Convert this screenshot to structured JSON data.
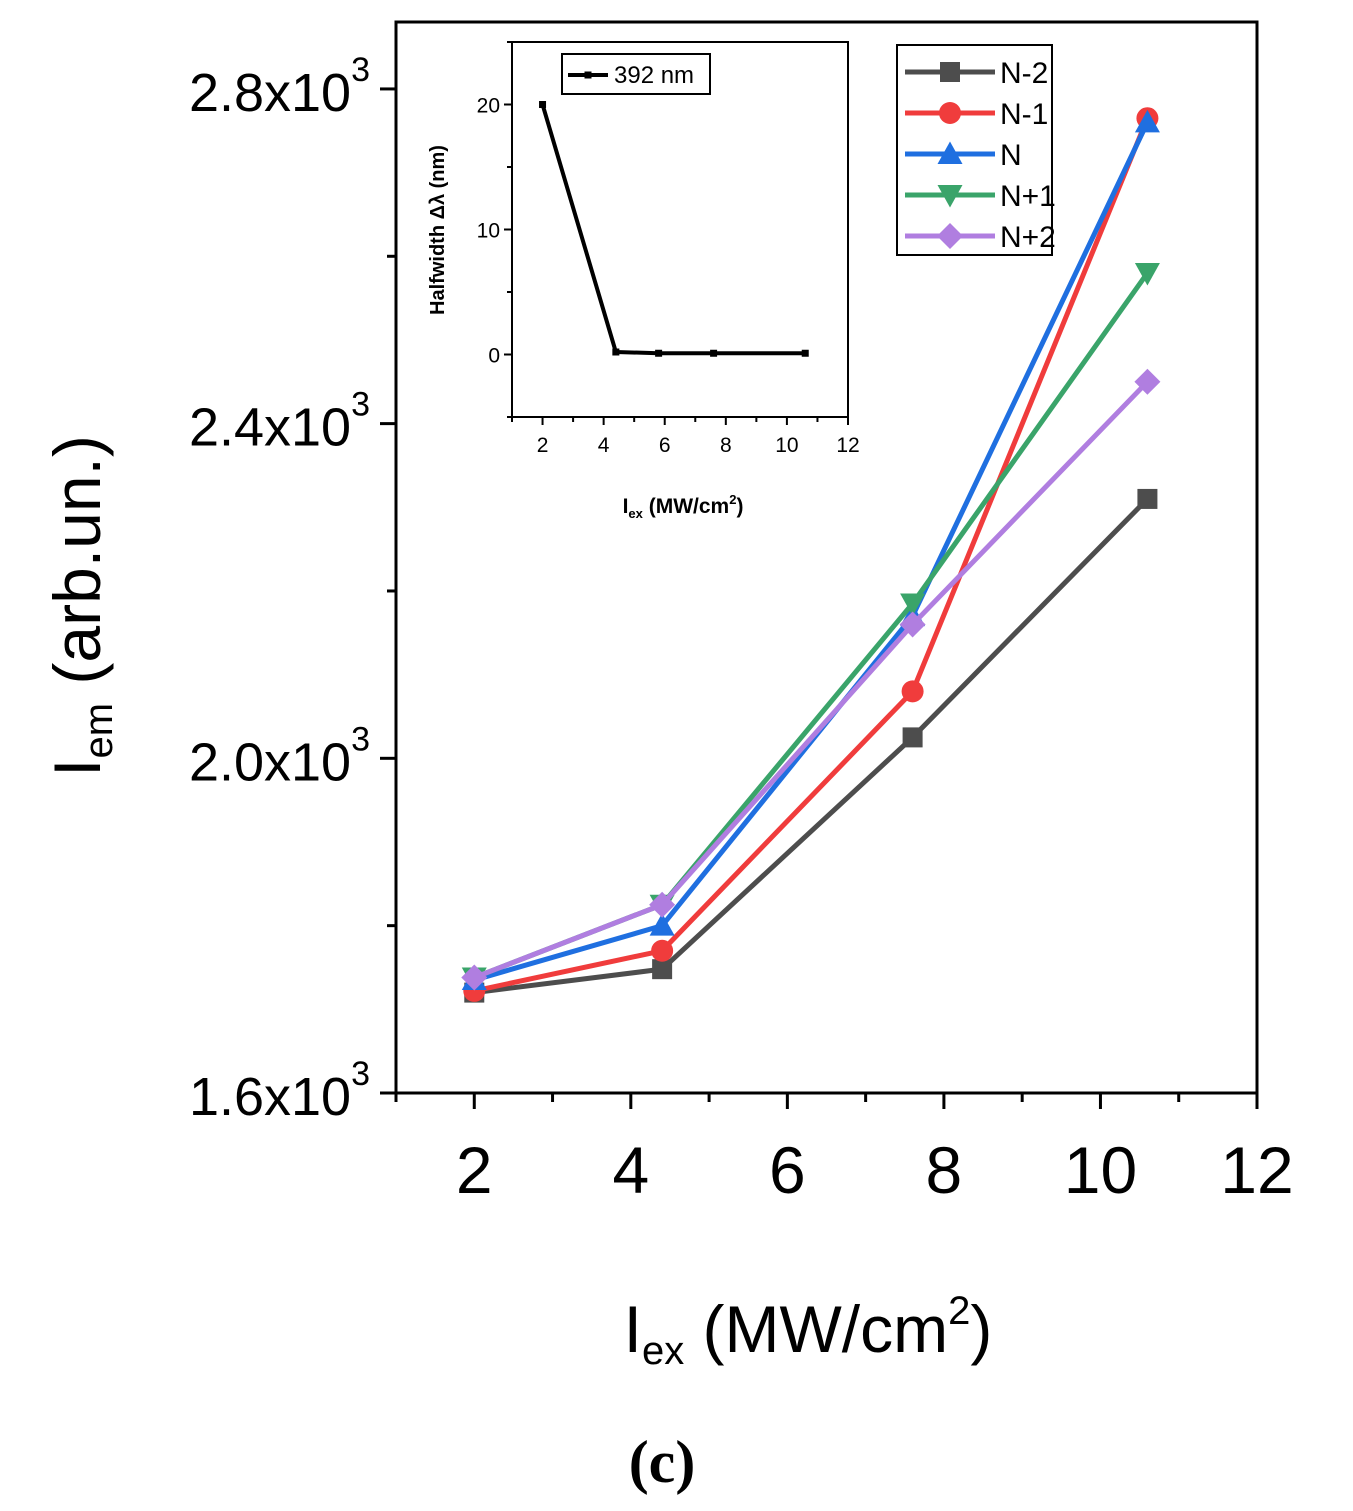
{
  "panel_label": "(c)",
  "chart_data": [
    {
      "type": "line",
      "role": "main",
      "xlabel": {
        "main": "I",
        "sub": "ex",
        "unit_open": " (MW/cm",
        "sup": "2",
        "unit_close": ")"
      },
      "ylabel": {
        "main": "I",
        "sub": "em",
        "rest": " (arb.un.)"
      },
      "xlim": [
        1,
        12
      ],
      "ylim": [
        1600,
        2880
      ],
      "x_ticks": [
        2,
        4,
        6,
        8,
        10,
        12
      ],
      "y_ticks": [
        {
          "value": 1600,
          "mantissa": "1.6x10",
          "exp": "3"
        },
        {
          "value": 2000,
          "mantissa": "2.0x10",
          "exp": "3"
        },
        {
          "value": 2400,
          "mantissa": "2.4x10",
          "exp": "3"
        },
        {
          "value": 2800,
          "mantissa": "2.8x10",
          "exp": "3"
        }
      ],
      "legend_position": "top-right",
      "series": [
        {
          "name": "N-2",
          "color": "#4d4d4d",
          "marker": "square",
          "x": [
            2,
            4.4,
            7.6,
            10.6
          ],
          "y": [
            1720,
            1748,
            2025,
            2310
          ]
        },
        {
          "name": "N-1",
          "color": "#f03c3c",
          "marker": "circle",
          "x": [
            2,
            4.4,
            7.6,
            10.6
          ],
          "y": [
            1722,
            1770,
            2080,
            2765
          ]
        },
        {
          "name": "N",
          "color": "#1f6fe0",
          "marker": "triangle-up",
          "x": [
            2,
            4.4,
            7.6,
            10.6
          ],
          "y": [
            1735,
            1800,
            2170,
            2760
          ]
        },
        {
          "name": "N+1",
          "color": "#3aa46a",
          "marker": "triangle-down",
          "x": [
            2,
            4.4,
            7.6,
            10.6
          ],
          "y": [
            1738,
            1825,
            2185,
            2580
          ]
        },
        {
          "name": "N+2",
          "color": "#b07ee0",
          "marker": "diamond",
          "x": [
            2,
            4.4,
            7.6,
            10.6
          ],
          "y": [
            1738,
            1825,
            2160,
            2450
          ]
        }
      ]
    },
    {
      "type": "line",
      "role": "inset",
      "xlabel": {
        "main": "I",
        "sub": "ex",
        "unit_open": " (MW/cm",
        "sup": "2",
        "unit_close": ")"
      },
      "ylabel": "Halfwidth Δλ (nm)",
      "xlim": [
        1,
        12
      ],
      "ylim": [
        -5,
        25
      ],
      "x_ticks": [
        2,
        4,
        6,
        8,
        10,
        12
      ],
      "y_ticks": [
        0,
        10,
        20
      ],
      "legend_position": "top-left",
      "series": [
        {
          "name": "392 nm",
          "color": "#000000",
          "marker": "square",
          "x": [
            2,
            4.4,
            5.8,
            7.6,
            10.6
          ],
          "y": [
            20,
            0.2,
            0.1,
            0.1,
            0.1
          ]
        }
      ]
    }
  ]
}
